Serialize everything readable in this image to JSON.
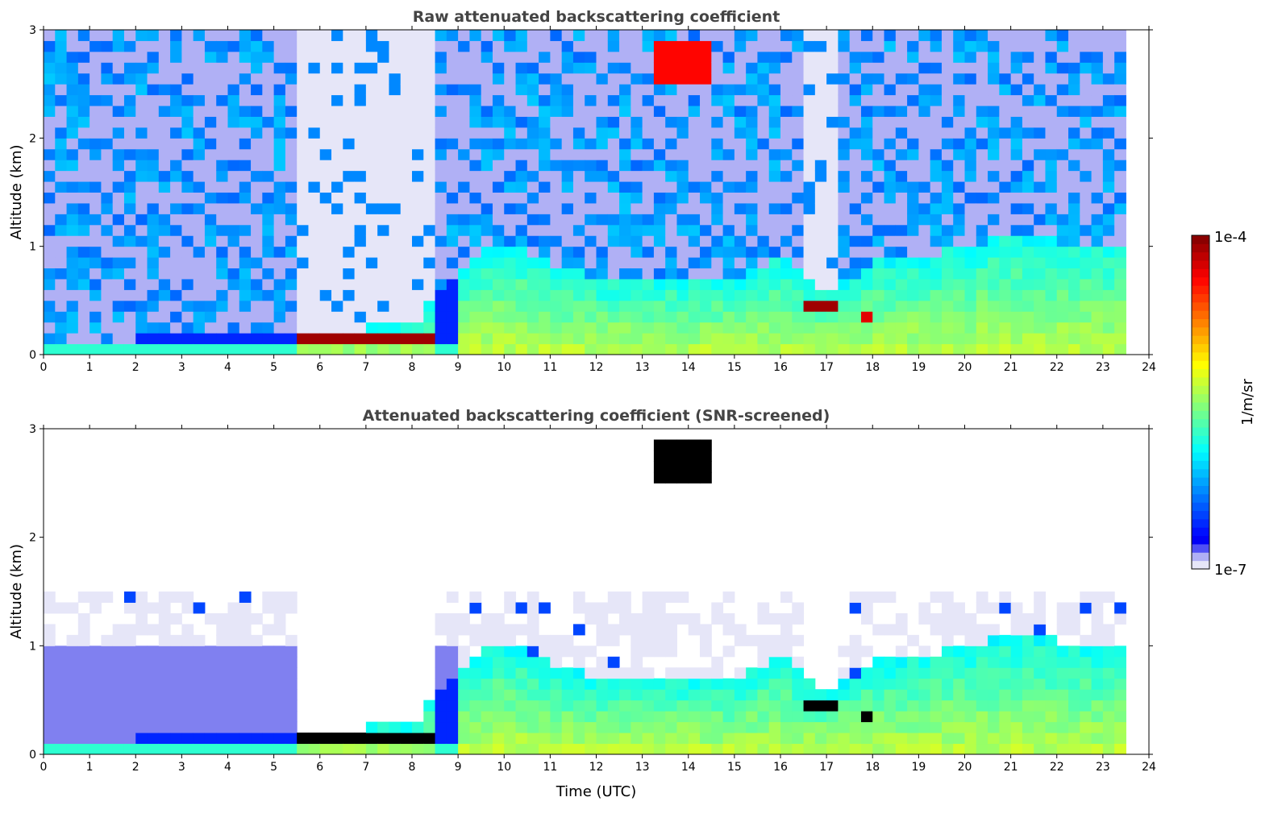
{
  "chart_data": [
    {
      "type": "heatmap",
      "title": "Raw attenuated backscattering coefficient",
      "xlabel": "",
      "ylabel": "Altitude (km)",
      "xlim": [
        0,
        24
      ],
      "ylim": [
        0,
        3
      ],
      "xticks": [
        "0",
        "1",
        "2",
        "3",
        "4",
        "5",
        "6",
        "7",
        "8",
        "9",
        "10",
        "11",
        "12",
        "13",
        "14",
        "15",
        "16",
        "17",
        "18",
        "19",
        "20",
        "21",
        "22",
        "23",
        "24"
      ],
      "yticks": [
        "0",
        "1",
        "2",
        "3"
      ],
      "screened": false
    },
    {
      "type": "heatmap",
      "title": "Attenuated backscattering coefficient (SNR-screened)",
      "xlabel": "Time (UTC)",
      "ylabel": "Altitude (km)",
      "xlim": [
        0,
        24
      ],
      "ylim": [
        0,
        3
      ],
      "xticks": [
        "0",
        "1",
        "2",
        "3",
        "4",
        "5",
        "6",
        "7",
        "8",
        "9",
        "10",
        "11",
        "12",
        "13",
        "14",
        "15",
        "16",
        "17",
        "18",
        "19",
        "20",
        "21",
        "22",
        "23",
        "24"
      ],
      "yticks": [
        "0",
        "1",
        "2",
        "3"
      ],
      "screened": true
    }
  ],
  "data_model": {
    "time_end_h": 23.5,
    "boundary_layer_top_km_hourly": [
      0.12,
      0.13,
      0.15,
      0.25,
      0.25,
      0.22,
      0.25,
      0.25,
      0.28,
      0.8,
      1.05,
      0.85,
      0.7,
      0.7,
      0.72,
      0.7,
      0.9,
      0.55,
      0.85,
      0.9,
      1.0,
      1.1,
      1.05,
      1.0,
      1.1
    ],
    "clouds": [
      {
        "t0": 5.4,
        "t1": 8.5,
        "z0": 0.08,
        "z1": 0.24,
        "log10_value": -4.1
      },
      {
        "t0": 16.5,
        "t1": 17.2,
        "z0": 0.38,
        "z1": 0.5,
        "log10_value": -4.1
      },
      {
        "t0": 17.7,
        "t1": 18.1,
        "z0": 0.35,
        "z1": 0.45,
        "log10_value": -4.3
      },
      {
        "t0": 13.3,
        "t1": 14.6,
        "z0": 2.5,
        "z1": 2.9,
        "log10_value": -4.4
      }
    ],
    "clear_gaps": [
      {
        "t0": 5.4,
        "t1": 8.6
      },
      {
        "t0": 16.5,
        "t1": 17.2
      }
    ]
  },
  "colorbar": {
    "label": "1/m/sr",
    "max_label": "1e-4",
    "min_label": "1e-7",
    "log10_min": -7,
    "log10_max": -4
  },
  "screened_saturation_color": "#000000"
}
